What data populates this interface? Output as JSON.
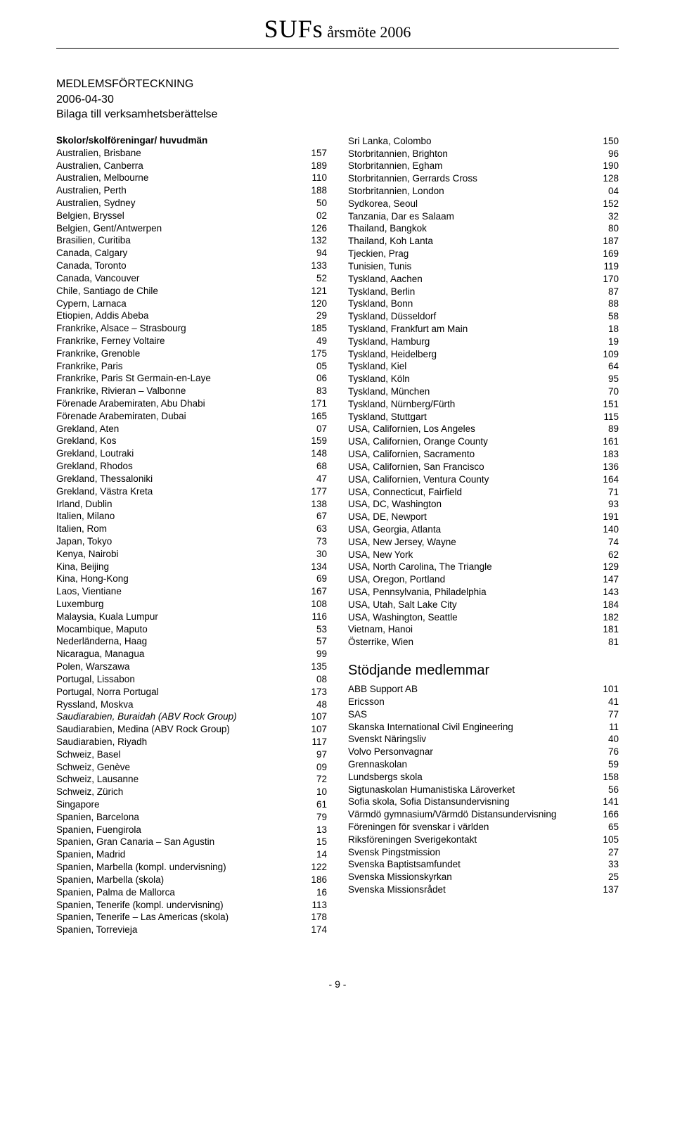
{
  "header": {
    "title_main": "SUFs",
    "title_sub": " årsmöte 2006"
  },
  "doc": {
    "line1": "MEDLEMSFÖRTECKNING",
    "line2": "2006-04-30",
    "line3": "Bilaga till verksamhetsberättelse"
  },
  "left": {
    "section_title": "Skolor/skolföreningar/ huvudmän",
    "rows": [
      {
        "label": "Australien, Brisbane",
        "val": "157"
      },
      {
        "label": "Australien, Canberra",
        "val": "189"
      },
      {
        "label": "Australien, Melbourne",
        "val": "110"
      },
      {
        "label": "Australien, Perth",
        "val": "188"
      },
      {
        "label": "Australien, Sydney",
        "val": "50"
      },
      {
        "label": "Belgien, Bryssel",
        "val": "02"
      },
      {
        "label": "Belgien, Gent/Antwerpen",
        "val": "126"
      },
      {
        "label": "Brasilien, Curitiba",
        "val": "132"
      },
      {
        "label": "Canada, Calgary",
        "val": "94"
      },
      {
        "label": "Canada, Toronto",
        "val": "133"
      },
      {
        "label": "Canada, Vancouver",
        "val": "52"
      },
      {
        "label": "Chile, Santiago de Chile",
        "val": "121"
      },
      {
        "label": "Cypern, Larnaca",
        "val": "120"
      },
      {
        "label": "Etiopien, Addis Abeba",
        "val": "29"
      },
      {
        "label": "Frankrike, Alsace – Strasbourg",
        "val": "185"
      },
      {
        "label": "Frankrike, Ferney Voltaire",
        "val": "49"
      },
      {
        "label": "Frankrike, Grenoble",
        "val": "175"
      },
      {
        "label": "Frankrike, Paris",
        "val": "05"
      },
      {
        "label": "Frankrike, Paris St Germain-en-Laye",
        "val": "06"
      },
      {
        "label": "Frankrike, Rivieran – Valbonne",
        "val": "83"
      },
      {
        "label": "Förenade Arabemiraten, Abu Dhabi",
        "val": "171"
      },
      {
        "label": "Förenade Arabemiraten, Dubai",
        "val": "165"
      },
      {
        "label": "Grekland, Aten",
        "val": "07"
      },
      {
        "label": "Grekland, Kos",
        "val": "159"
      },
      {
        "label": "Grekland, Loutraki",
        "val": "148"
      },
      {
        "label": "Grekland, Rhodos",
        "val": "68"
      },
      {
        "label": "Grekland, Thessaloniki",
        "val": "47"
      },
      {
        "label": "Grekland, Västra Kreta",
        "val": "177"
      },
      {
        "label": "Irland, Dublin",
        "val": "138"
      },
      {
        "label": "Italien, Milano",
        "val": "67"
      },
      {
        "label": "Italien, Rom",
        "val": "63"
      },
      {
        "label": "Japan, Tokyo",
        "val": "73"
      },
      {
        "label": "Kenya, Nairobi",
        "val": "30"
      },
      {
        "label": "Kina, Beijing",
        "val": "134"
      },
      {
        "label": "Kina, Hong-Kong",
        "val": "69"
      },
      {
        "label": "Laos, Vientiane",
        "val": "167"
      },
      {
        "label": "Luxemburg",
        "val": "108"
      },
      {
        "label": "Malaysia, Kuala Lumpur",
        "val": "116"
      },
      {
        "label": "Mocambique, Maputo",
        "val": "53"
      },
      {
        "label": "Nederländerna, Haag",
        "val": "57"
      },
      {
        "label": "Nicaragua, Managua",
        "val": "99"
      },
      {
        "label": "Polen, Warszawa",
        "val": "135"
      },
      {
        "label": "Portugal, Lissabon",
        "val": "08"
      },
      {
        "label": "Portugal, Norra Portugal",
        "val": "173"
      },
      {
        "label": "Ryssland, Moskva",
        "val": "48"
      },
      {
        "label": "Saudiarabien, Buraidah (ABV Rock Group)",
        "val": "107",
        "italic": true
      },
      {
        "label": "Saudiarabien, Medina (ABV Rock Group)",
        "val": "107"
      },
      {
        "label": "Saudiarabien, Riyadh",
        "val": "117"
      },
      {
        "label": "Schweiz, Basel",
        "val": "97"
      },
      {
        "label": "Schweiz, Genève",
        "val": "09"
      },
      {
        "label": "Schweiz, Lausanne",
        "val": "72"
      },
      {
        "label": "Schweiz, Zürich",
        "val": "10"
      },
      {
        "label": "Singapore",
        "val": "61"
      },
      {
        "label": "Spanien, Barcelona",
        "val": "79"
      },
      {
        "label": "Spanien, Fuengirola",
        "val": "13"
      },
      {
        "label": "Spanien, Gran Canaria – San Agustin",
        "val": "15"
      },
      {
        "label": "Spanien, Madrid",
        "val": "14"
      },
      {
        "label": "Spanien, Marbella (kompl. undervisning)",
        "val": "122"
      },
      {
        "label": "Spanien, Marbella (skola)",
        "val": "186"
      },
      {
        "label": "Spanien, Palma de Mallorca",
        "val": "16"
      },
      {
        "label": "Spanien, Tenerife (kompl. undervisning)",
        "val": "113"
      },
      {
        "label": "Spanien, Tenerife – Las Americas (skola)",
        "val": "178"
      },
      {
        "label": "Spanien, Torrevieja",
        "val": "174"
      }
    ]
  },
  "right_top": {
    "rows": [
      {
        "label": "Sri Lanka, Colombo",
        "val": "150"
      },
      {
        "label": "Storbritannien, Brighton",
        "val": "96"
      },
      {
        "label": "Storbritannien, Egham",
        "val": "190"
      },
      {
        "label": "Storbritannien, Gerrards Cross",
        "val": "128"
      },
      {
        "label": "Storbritannien, London",
        "val": "04"
      },
      {
        "label": "Sydkorea, Seoul",
        "val": "152"
      },
      {
        "label": "Tanzania, Dar es Salaam",
        "val": "32"
      },
      {
        "label": "Thailand, Bangkok",
        "val": "80"
      },
      {
        "label": "Thailand, Koh Lanta",
        "val": "187"
      },
      {
        "label": "Tjeckien, Prag",
        "val": "169"
      },
      {
        "label": "Tunisien, Tunis",
        "val": "119"
      },
      {
        "label": "Tyskland, Aachen",
        "val": "170"
      },
      {
        "label": "Tyskland, Berlin",
        "val": "87"
      },
      {
        "label": "Tyskland, Bonn",
        "val": "88"
      },
      {
        "label": "Tyskland, Düsseldorf",
        "val": "58"
      },
      {
        "label": "Tyskland, Frankfurt am Main",
        "val": "18"
      },
      {
        "label": "Tyskland, Hamburg",
        "val": "19"
      },
      {
        "label": "Tyskland, Heidelberg",
        "val": "109"
      },
      {
        "label": "Tyskland, Kiel",
        "val": "64"
      },
      {
        "label": "Tyskland, Köln",
        "val": "95"
      },
      {
        "label": "Tyskland, München",
        "val": "70"
      },
      {
        "label": "Tyskland, Nürnberg/Fürth",
        "val": "151"
      },
      {
        "label": "Tyskland, Stuttgart",
        "val": "115"
      },
      {
        "label": "USA, Californien, Los Angeles",
        "val": "89"
      },
      {
        "label": "USA, Californien, Orange County",
        "val": "161"
      },
      {
        "label": "USA, Californien, Sacramento",
        "val": "183"
      },
      {
        "label": "USA, Californien, San Francisco",
        "val": "136"
      },
      {
        "label": "USA, Californien, Ventura County",
        "val": "164"
      },
      {
        "label": "USA, Connecticut, Fairfield",
        "val": "71"
      },
      {
        "label": "USA, DC, Washington",
        "val": "93"
      },
      {
        "label": "USA, DE, Newport",
        "val": "191"
      },
      {
        "label": "USA, Georgia, Atlanta",
        "val": "140"
      },
      {
        "label": "USA, New Jersey, Wayne",
        "val": "74"
      },
      {
        "label": "USA, New York",
        "val": "62"
      },
      {
        "label": "USA, North Carolina, The Triangle",
        "val": "129"
      },
      {
        "label": "USA, Oregon, Portland",
        "val": "147"
      },
      {
        "label": "USA, Pennsylvania, Philadelphia",
        "val": "143"
      },
      {
        "label": "USA, Utah, Salt Lake City",
        "val": "184"
      },
      {
        "label": "USA, Washington, Seattle",
        "val": "182"
      },
      {
        "label": "Vietnam, Hanoi",
        "val": "181"
      },
      {
        "label": "Österrike, Wien",
        "val": "81"
      }
    ]
  },
  "right_bottom": {
    "section_title": "Stödjande medlemmar",
    "rows": [
      {
        "label": "ABB Support AB",
        "val": "101"
      },
      {
        "label": "Ericsson",
        "val": "41"
      },
      {
        "label": "SAS",
        "val": "77"
      },
      {
        "label": "Skanska International Civil Engineering",
        "val": "11"
      },
      {
        "label": "Svenskt Näringsliv",
        "val": "40"
      },
      {
        "label": "Volvo Personvagnar",
        "val": "76"
      },
      {
        "label": "Grennaskolan",
        "val": "59"
      },
      {
        "label": "Lundsbergs skola",
        "val": "158"
      },
      {
        "label": "Sigtunaskolan Humanistiska Läroverket",
        "val": "56"
      },
      {
        "label": "Sofia skola, Sofia Distansundervisning",
        "val": "141"
      },
      {
        "label": "Värmdö gymnasium/Värmdö Distansundervisning",
        "val": "166"
      },
      {
        "label": "Föreningen för svenskar i världen",
        "val": "65"
      },
      {
        "label": "Riksföreningen Sverigekontakt",
        "val": "105"
      },
      {
        "label": "Svensk Pingstmission",
        "val": "27"
      },
      {
        "label": "Svenska Baptistsamfundet",
        "val": "33"
      },
      {
        "label": "Svenska Missionskyrkan",
        "val": "25"
      },
      {
        "label": "Svenska Missionsrådet",
        "val": "137"
      }
    ]
  },
  "footer": {
    "page_num": "- 9 -"
  }
}
